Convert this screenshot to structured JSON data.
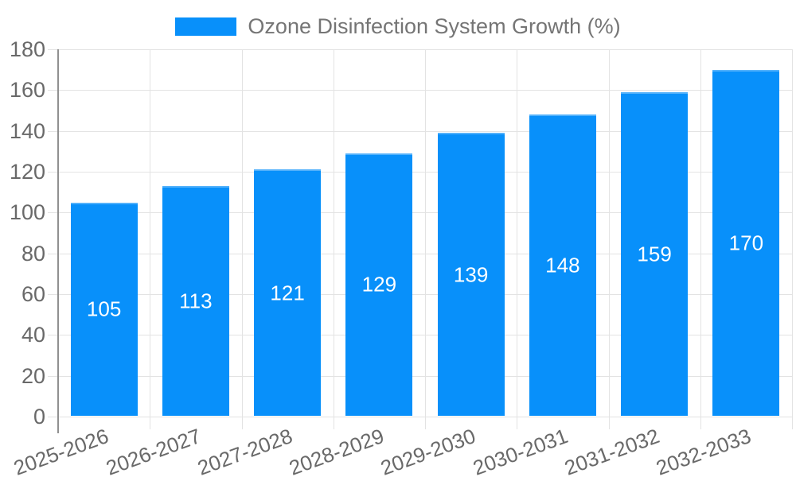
{
  "legend": {
    "label": "Ozone Disinfection System Growth (%)"
  },
  "colors": {
    "bar": "#0890FA",
    "grid": "#e3e3e3",
    "axis_line": "#909090",
    "tick_text": "#696969",
    "legend_text": "#757575",
    "bar_label_text": "#ffffff",
    "background": "#ffffff"
  },
  "chart_data": {
    "type": "bar",
    "title": "Ozone Disinfection System Growth (%)",
    "categories": [
      "2025-2026",
      "2026-2027",
      "2027-2028",
      "2028-2029",
      "2029-2030",
      "2030-2031",
      "2031-2032",
      "2032-2033"
    ],
    "values": [
      105,
      113,
      121,
      129,
      139,
      148,
      159,
      170
    ],
    "series_name": "Ozone Disinfection System Growth (%)",
    "xlabel": "",
    "ylabel": "",
    "ylim": [
      0,
      180
    ],
    "yticks": [
      0,
      20,
      40,
      60,
      80,
      100,
      120,
      140,
      160,
      180
    ],
    "grid": true,
    "legend_position": "top-center",
    "bar_value_labels": "centered-inside-white",
    "x_label_rotation_deg": -20
  }
}
